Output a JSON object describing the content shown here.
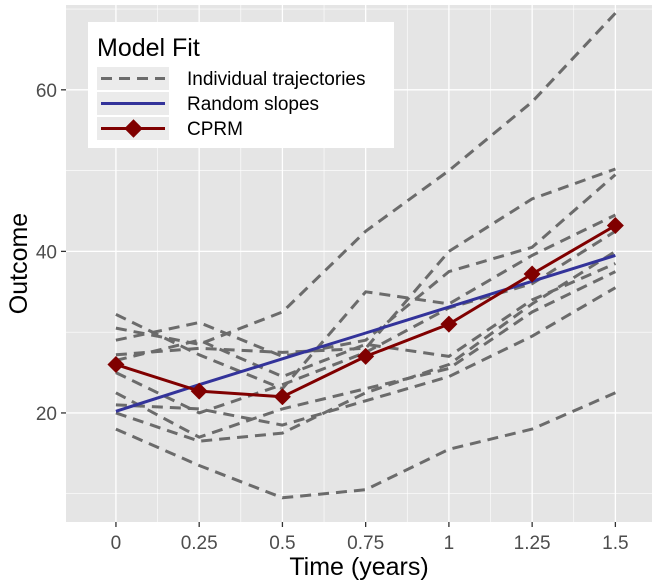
{
  "chart_data": {
    "type": "line",
    "title": "",
    "xlabel": "Time (years)",
    "ylabel": "Outcome",
    "x": [
      0,
      0.25,
      0.5,
      0.75,
      1,
      1.25,
      1.5
    ],
    "x_tick_labels": [
      "0",
      "0.25",
      "0.5",
      "0.75",
      "1",
      "1.25",
      "1.5"
    ],
    "xlim": [
      -0.15,
      1.61
    ],
    "y_ticks": [
      20,
      40,
      60
    ],
    "y_tick_labels": [
      "20",
      "40",
      "60"
    ],
    "ylim": [
      6.5,
      70.5
    ],
    "grid": true,
    "legend": {
      "title": "Model Fit",
      "position": "top-left",
      "entries": [
        "Individual trajectories",
        "Random slopes",
        "CPRM"
      ]
    },
    "colors": {
      "panel_background": "#e5e5e5",
      "grid": "#ffffff",
      "individual": "#6b6b6b",
      "random_slopes": "#33339a",
      "cprm": "#800000"
    },
    "series": [
      {
        "group": "Individual trajectories",
        "values": [
          32.2,
          27.2,
          23.0,
          35.0,
          33.5,
          39.5,
          44.5
        ]
      },
      {
        "group": "Individual trajectories",
        "values": [
          29.0,
          31.2,
          27.0,
          29.0,
          37.5,
          40.5,
          49.5
        ]
      },
      {
        "group": "Individual trajectories",
        "values": [
          30.5,
          28.5,
          32.5,
          42.5,
          50.0,
          58.5,
          69.5
        ]
      },
      {
        "group": "Individual trajectories",
        "values": [
          27.2,
          28.0,
          27.5,
          28.0,
          40.0,
          46.5,
          50.2
        ]
      },
      {
        "group": "Individual trajectories",
        "values": [
          26.5,
          29.0,
          24.5,
          28.5,
          27.0,
          34.0,
          38.5
        ]
      },
      {
        "group": "Individual trajectories",
        "values": [
          25.0,
          20.0,
          23.5,
          27.5,
          33.0,
          36.0,
          42.5
        ]
      },
      {
        "group": "Individual trajectories",
        "values": [
          22.5,
          17.0,
          20.5,
          23.0,
          25.5,
          32.5,
          37.5
        ]
      },
      {
        "group": "Individual trajectories",
        "values": [
          21.0,
          20.5,
          18.5,
          21.5,
          24.5,
          29.5,
          35.5
        ]
      },
      {
        "group": "Individual trajectories",
        "values": [
          20.0,
          16.5,
          17.5,
          22.5,
          26.0,
          33.5,
          40.0
        ]
      },
      {
        "group": "Individual trajectories",
        "values": [
          18.0,
          13.5,
          9.5,
          10.5,
          15.5,
          18.0,
          22.5
        ]
      },
      {
        "name": "Random slopes",
        "values": [
          20.2,
          23.5,
          26.7,
          29.9,
          33.1,
          36.3,
          39.5
        ]
      },
      {
        "name": "CPRM",
        "values": [
          26.0,
          22.7,
          22.0,
          27.0,
          31.0,
          37.2,
          43.2
        ]
      }
    ]
  }
}
